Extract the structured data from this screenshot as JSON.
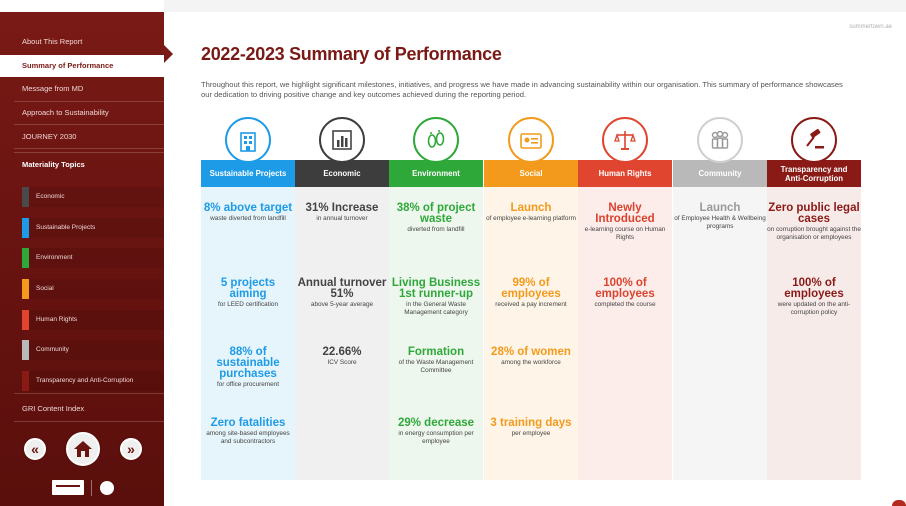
{
  "site": "summertown.ae",
  "title": "2022-2023 Summary of Performance",
  "intro": "Throughout this report, we highlight significant milestones, initiatives, and progress we have made in advancing sustainability within our organisation. This summary of performance showcases our dedication to driving positive change and key outcomes achieved during the reporting period.",
  "sidebar": {
    "items": [
      {
        "label": "About This Report"
      },
      {
        "label": "Summary of Performance"
      },
      {
        "label": "Message from MD"
      },
      {
        "label": "Approach to Sustainability"
      },
      {
        "label": "JOURNEY 2030"
      }
    ],
    "topics_heading": "Materiality Topics",
    "topics": [
      {
        "label": "Economic",
        "color": "#4a4a4a"
      },
      {
        "label": "Sustainable Projects",
        "color": "#1e9be6"
      },
      {
        "label": "Environment",
        "color": "#2fa83a"
      },
      {
        "label": "Social",
        "color": "#f39a1c"
      },
      {
        "label": "Human Rights",
        "color": "#e0452f"
      },
      {
        "label": "Community",
        "color": "#b9b9b9"
      },
      {
        "label": "Transparency and Anti-Corruption",
        "color": "#8a1a16"
      }
    ],
    "gri": "GRI Content Index",
    "prev_glyph": "«",
    "next_glyph": "»"
  },
  "columns": [
    {
      "heading": "Sustainable Projects",
      "color": "#1e9be6",
      "text_color": "#1e9be6",
      "bg": "#e6f4fb",
      "icon": "building-icon",
      "metrics": [
        {
          "big": "8% above target",
          "small": "waste diverted from landfill"
        },
        {
          "big": "5 projects aiming",
          "small": "for LEED certification"
        },
        {
          "big": "88% of sustainable purchases",
          "small": "for office procurement"
        },
        {
          "big": "Zero fatalities",
          "small": "among site-based employees and subcontractors"
        }
      ]
    },
    {
      "heading": "Economic",
      "color": "#3d3d3d",
      "text_color": "#444444",
      "bg": "#f0f0f0",
      "icon": "bar-chart-icon",
      "metrics": [
        {
          "big": "31% Increase",
          "small": "in annual turnover"
        },
        {
          "big": "Annual turnover 51%",
          "small": "above 5-year average"
        },
        {
          "big": "22.66%",
          "small": "ICV Score"
        },
        {
          "big": "",
          "small": ""
        }
      ]
    },
    {
      "heading": "Environment",
      "color": "#2fa83a",
      "text_color": "#2fa83a",
      "bg": "#eef7ee",
      "icon": "footprints-icon",
      "metrics": [
        {
          "big": "38% of project waste",
          "small": "diverted from landfill"
        },
        {
          "big": "Living Business 1st runner-up",
          "small": "in the General Waste Management category"
        },
        {
          "big": "Formation",
          "small": "of the Waste Management Committee"
        },
        {
          "big": "29% decrease",
          "small": "in energy consumption per employee"
        }
      ]
    },
    {
      "heading": "Social",
      "color": "#f39a1c",
      "text_color": "#f39a1c",
      "bg": "#fef5e8",
      "icon": "id-card-icon",
      "metrics": [
        {
          "big": "Launch",
          "small": "of employee e-learning platform"
        },
        {
          "big": "99% of employees",
          "small": "received a pay increment"
        },
        {
          "big": "28% of women",
          "small": "among the workforce"
        },
        {
          "big": "3 training days",
          "small": "per employee"
        }
      ]
    },
    {
      "heading": "Human Rights",
      "color": "#e0452f",
      "text_color": "#d9442f",
      "bg": "#fcecea",
      "icon": "justice-scales-icon",
      "metrics": [
        {
          "big": "Newly Introduced",
          "small": "e-learning course on Human Rights"
        },
        {
          "big": "100% of employees",
          "small": "completed the course"
        },
        {
          "big": "",
          "small": ""
        },
        {
          "big": "",
          "small": ""
        }
      ]
    },
    {
      "heading": "Community",
      "color": "#b9b9b9",
      "text_color": "#9a9a9a",
      "bg": "#f5f5f5",
      "icon": "people-icon",
      "metrics": [
        {
          "big": "Launch",
          "small": "of Employee Health & Wellbeing programs"
        },
        {
          "big": "",
          "small": ""
        },
        {
          "big": "",
          "small": ""
        },
        {
          "big": "",
          "small": ""
        }
      ]
    },
    {
      "heading": "Transparency and Anti-Corruption",
      "color": "#8a1a16",
      "text_color": "#8a1a16",
      "bg": "#f7ebea",
      "icon": "gavel-icon",
      "metrics": [
        {
          "big": "Zero public legal cases",
          "small": "on corruption brought against the organisation or employees"
        },
        {
          "big": "100% of employees",
          "small": "were updated on the anti-corruption policy"
        },
        {
          "big": "",
          "small": ""
        },
        {
          "big": "",
          "small": ""
        }
      ]
    }
  ]
}
